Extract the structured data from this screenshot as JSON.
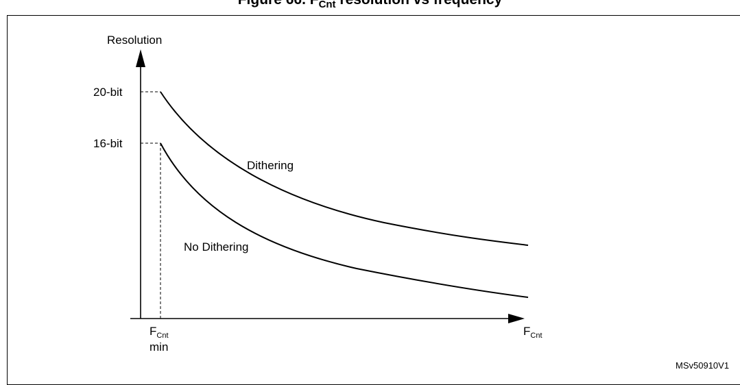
{
  "figure": {
    "title_prefix": "Figure 66. F",
    "title_sub": "Cnt",
    "title_suffix": " resolution vs frequency",
    "reference": "MSv50910V1"
  },
  "axes": {
    "y_label": "Resolution",
    "x_label_main": "F",
    "x_label_sub": "Cnt",
    "min_label_main": "F",
    "min_label_sub": "Cnt",
    "min_label_line2": "min"
  },
  "levels": {
    "high": "20-bit",
    "low": "16-bit"
  },
  "curves": {
    "dithering": "Dithering",
    "no_dithering": "No Dithering"
  }
}
